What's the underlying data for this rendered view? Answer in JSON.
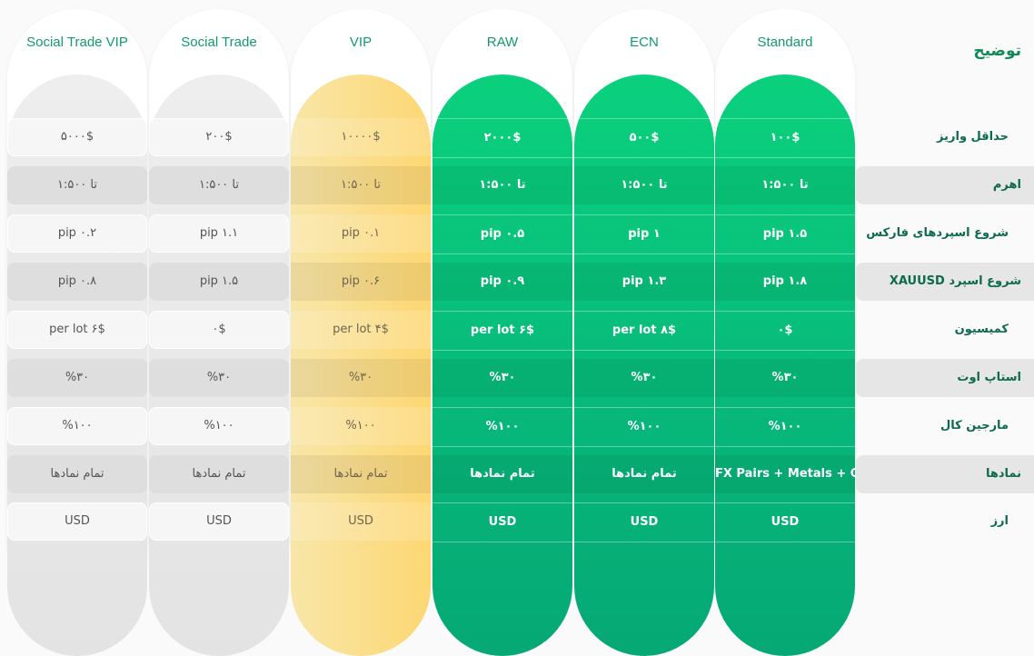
{
  "header": {
    "title": "توضیح"
  },
  "rows": [
    "حداقل واریز",
    "اهرم",
    "شروع اسپردهای فارکس",
    "شروع اسپرد XAUUSD",
    "کمیسیون",
    "استاپ اوت",
    "مارجین کال",
    "نمادها",
    "ارز"
  ],
  "columns": [
    {
      "name": "Social Trade VIP",
      "style": "grey",
      "values": [
        "۵۰۰۰$",
        "تا ۱:۵۰۰",
        "pip ۰.۲",
        "pip ۰.۸",
        "per lot ۶$",
        "%۳۰",
        "%۱۰۰",
        "تمام نمادها",
        "USD"
      ]
    },
    {
      "name": "Social Trade",
      "style": "grey",
      "values": [
        "۲۰۰$",
        "تا ۱:۵۰۰",
        "pip ۱.۱",
        "pip ۱.۵",
        "۰$",
        "%۳۰",
        "%۱۰۰",
        "تمام نمادها",
        "USD"
      ]
    },
    {
      "name": "VIP",
      "style": "yellow",
      "values": [
        "۱۰۰۰۰$",
        "تا ۱:۵۰۰",
        "pip ۰.۱",
        "pip ۰.۶",
        "per lot ۴$",
        "%۳۰",
        "%۱۰۰",
        "تمام نمادها",
        "USD"
      ]
    },
    {
      "name": "RAW",
      "style": "green",
      "values": [
        "۲۰۰۰$",
        "تا ۱:۵۰۰",
        "pip ۰.۵",
        "pip ۰.۹",
        "per lot ۶$",
        "%۳۰",
        "%۱۰۰",
        "تمام نمادها",
        "USD"
      ]
    },
    {
      "name": "ECN",
      "style": "green",
      "values": [
        "۵۰۰$",
        "تا ۱:۵۰۰",
        "pip ۱",
        "pip ۱.۳",
        "per lot ۸$",
        "%۳۰",
        "%۱۰۰",
        "تمام نمادها",
        "USD"
      ]
    },
    {
      "name": "Standard",
      "style": "green",
      "values": [
        "۱۰۰$",
        "تا ۱:۵۰۰",
        "pip ۱.۵",
        "pip ۱.۸",
        "۰$",
        "%۳۰",
        "%۱۰۰",
        "FX Pairs + Metals + Oil",
        "USD"
      ]
    }
  ],
  "colors": {
    "accent": "#129c66",
    "green": "#07b77a",
    "yellow": "#fdd772",
    "grey": "#e3e3e3"
  }
}
